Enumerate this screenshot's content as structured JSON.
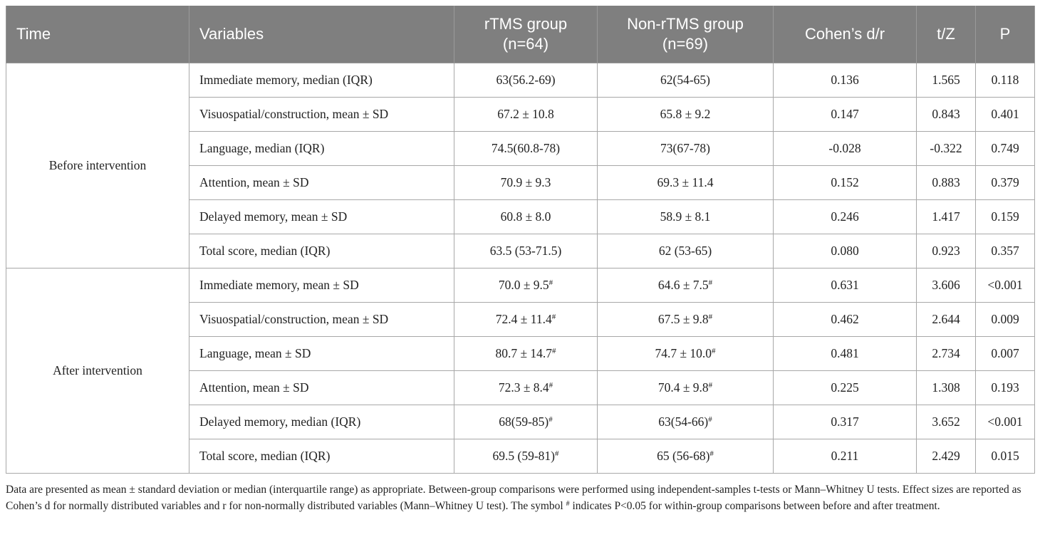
{
  "table": {
    "columns": [
      [
        "Time"
      ],
      [
        "Variables"
      ],
      [
        "rTMS group",
        "(n=64)"
      ],
      [
        "Non-rTMS group",
        "(n=69)"
      ],
      [
        "Cohen’s d/r"
      ],
      [
        "t/Z"
      ],
      [
        "P"
      ]
    ],
    "groups": [
      {
        "time": "Before intervention",
        "rows": [
          [
            "Immediate memory, median (IQR)",
            "63(56.2-69)",
            "62(54-65)",
            "0.136",
            "1.565",
            "0.118"
          ],
          [
            "Visuospatial/construction, mean ± SD",
            "67.2 ± 10.8",
            "65.8 ± 9.2",
            "0.147",
            "0.843",
            "0.401"
          ],
          [
            "Language, median (IQR)",
            "74.5(60.8-78)",
            "73(67-78)",
            "-0.028",
            "-0.322",
            "0.749"
          ],
          [
            "Attention, mean ± SD",
            "70.9 ± 9.3",
            "69.3 ± 11.4",
            "0.152",
            "0.883",
            "0.379"
          ],
          [
            "Delayed memory, mean ± SD",
            "60.8 ± 8.0",
            "58.9 ± 8.1",
            "0.246",
            "1.417",
            "0.159"
          ],
          [
            "Total score, median (IQR)",
            "63.5 (53-71.5)",
            "62 (53-65)",
            "0.080",
            "0.923",
            "0.357"
          ]
        ]
      },
      {
        "time": "After intervention",
        "rows": [
          [
            "Immediate memory, mean ± SD",
            {
              "text": "70.0 ± 9.5",
              "sup": "#"
            },
            {
              "text": "64.6 ± 7.5",
              "sup": "#"
            },
            "0.631",
            "3.606",
            "<0.001"
          ],
          [
            "Visuospatial/construction, mean ± SD",
            {
              "text": "72.4 ± 11.4",
              "sup": "#"
            },
            {
              "text": "67.5 ± 9.8",
              "sup": "#"
            },
            "0.462",
            "2.644",
            "0.009"
          ],
          [
            "Language, mean ± SD",
            {
              "text": "80.7 ± 14.7",
              "sup": "#"
            },
            {
              "text": "74.7 ± 10.0",
              "sup": "#"
            },
            "0.481",
            "2.734",
            "0.007"
          ],
          [
            "Attention, mean ± SD",
            {
              "text": "72.3 ± 8.4",
              "sup": "#"
            },
            {
              "text": "70.4 ± 9.8",
              "sup": "#"
            },
            "0.225",
            "1.308",
            "0.193"
          ],
          [
            "Delayed memory, median (IQR)",
            {
              "text": "68(59-85)",
              "sup": "#"
            },
            {
              "text": "63(54-66)",
              "sup": "#"
            },
            "0.317",
            "3.652",
            "<0.001"
          ],
          [
            "Total score, median (IQR)",
            {
              "text": "69.5 (59-81)",
              "sup": "#"
            },
            {
              "text": "65 (56-68)",
              "sup": "#"
            },
            "0.211",
            "2.429",
            "0.015"
          ]
        ]
      }
    ]
  },
  "note": [
    "Data are presented as mean ± standard deviation or median (interquartile range) as appropriate. Between-group comparisons were performed using independent-samples t-tests or Mann–Whitney U tests. Effect sizes are reported as Cohen’s d for normally distributed variables and r for non-normally distributed variables (Mann–Whitney U test). The symbol ",
    "#",
    " indicates P<0.05 for within-group comparisons between before and after treatment."
  ]
}
